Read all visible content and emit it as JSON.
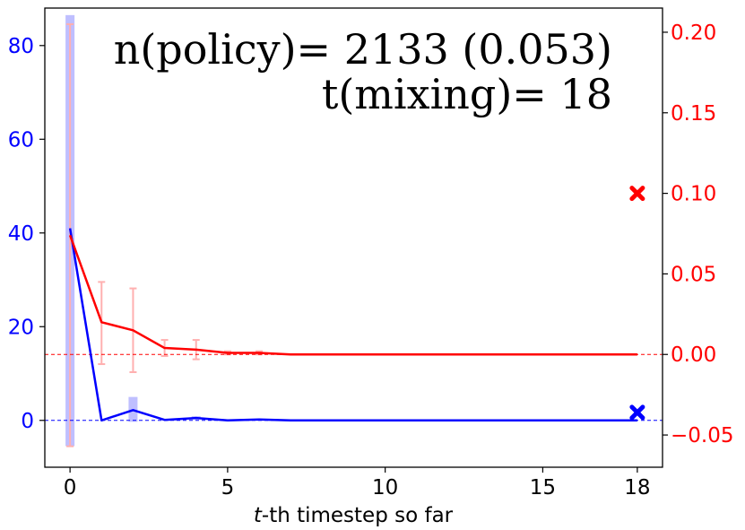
{
  "chart_data": {
    "type": "line",
    "title": "",
    "xlabel": "t-th timestep so far",
    "xlabel_italic_part": "t",
    "xlabel_rest": "-th timestep so far",
    "ylabel_left": "",
    "ylabel_right": "",
    "xlim": [
      -0.8,
      18.8
    ],
    "ylim_left": [
      -10,
      88
    ],
    "ylim_right": [
      -0.07,
      0.215
    ],
    "x_ticks": [
      0,
      5,
      10,
      15,
      18
    ],
    "x_tick_labels": [
      "0",
      "5",
      "10",
      "15",
      "18"
    ],
    "y_left_ticks": [
      0,
      20,
      40,
      60,
      80
    ],
    "y_left_tick_labels": [
      "0",
      "20",
      "40",
      "60",
      "80"
    ],
    "y_right_ticks": [
      -0.05,
      0.0,
      0.05,
      0.1,
      0.15,
      0.2
    ],
    "y_right_tick_labels": [
      "−0.05",
      "0.00",
      "0.05",
      "0.10",
      "0.15",
      "0.20"
    ],
    "grid": false,
    "annotations": [
      "n(policy)= 2133 (0.053)",
      "t(mixing)= 18"
    ],
    "series": [
      {
        "axis": "left",
        "color": "#0000ff",
        "x": [
          0,
          1,
          2,
          3,
          4,
          5,
          6,
          7,
          8,
          9,
          10,
          11,
          12,
          13,
          14,
          15,
          16,
          17,
          18
        ],
        "values": [
          41,
          0,
          2.2,
          0.1,
          0.5,
          0.0,
          0.2,
          0.0,
          0.0,
          0.0,
          0.0,
          0.0,
          0.0,
          0.0,
          0.0,
          0.0,
          0.0,
          0.0,
          0.0
        ],
        "bars": [
          {
            "x": 0,
            "low": -5.5,
            "high": 86.5
          },
          {
            "x": 2,
            "low": -0.3,
            "high": 5.0
          },
          {
            "x": 4,
            "low": 0.2,
            "high": 0.9
          }
        ],
        "reference": 0,
        "final_marker": 1.7
      },
      {
        "axis": "right",
        "color": "#ff0000",
        "x": [
          0,
          1,
          2,
          3,
          4,
          5,
          6,
          7,
          8,
          9,
          10,
          11,
          12,
          13,
          14,
          15,
          16,
          17,
          18
        ],
        "values": [
          0.074,
          0.02,
          0.015,
          0.004,
          0.003,
          0.001,
          0.001,
          0.0,
          0.0,
          0.0,
          0.0,
          0.0,
          0.0,
          0.0,
          0.0,
          0.0,
          0.0,
          0.0,
          0.0
        ],
        "errors": [
          {
            "x": 0,
            "low": -0.057,
            "high": 0.205
          },
          {
            "x": 1,
            "low": -0.006,
            "high": 0.045
          },
          {
            "x": 2,
            "low": -0.011,
            "high": 0.041
          },
          {
            "x": 3,
            "low": -0.001,
            "high": 0.009
          },
          {
            "x": 4,
            "low": -0.003,
            "high": 0.009
          },
          {
            "x": 5,
            "low": 0.0,
            "high": 0.002
          },
          {
            "x": 6,
            "low": 0.0,
            "high": 0.002
          }
        ],
        "reference": 0,
        "final_marker": 0.1
      }
    ]
  },
  "colors": {
    "blue": "#0000ff",
    "red": "#ff0000",
    "blue_bar": "#b4b4ff",
    "red_err": "#ffb0b0"
  }
}
